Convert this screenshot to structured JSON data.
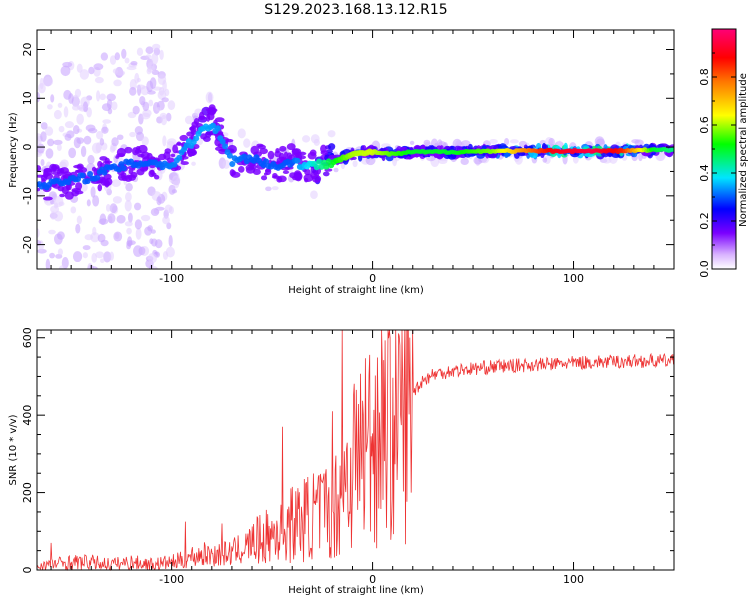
{
  "chart_data": [
    {
      "type": "heatmap",
      "title": "S129.2023.168.13.12.R15",
      "xlabel": "Height of straight line (km)",
      "ylabel": "Frequency (Hz)",
      "xlim": [
        -167,
        150
      ],
      "ylim": [
        -25,
        24
      ],
      "x_ticks": [
        -100,
        0,
        100
      ],
      "x_tick_labels": [
        "-100",
        "0",
        "100"
      ],
      "y_ticks": [
        20,
        10,
        0,
        -10,
        -20
      ],
      "y_tick_labels": [
        "20",
        "10",
        "0",
        "-10",
        "-20"
      ],
      "colorbar": {
        "label": "Normalized spectral amplitude",
        "ticks": [
          0.0,
          0.2,
          0.4,
          0.6,
          0.8
        ],
        "tick_labels": [
          "0.0",
          "0.2",
          "0.4",
          "0.6",
          "0.8"
        ],
        "range": [
          0,
          1
        ]
      },
      "ridge_frequency_hz": [
        [
          -160,
          -7.5
        ],
        [
          -150,
          -7
        ],
        [
          -140,
          -6
        ],
        [
          -130,
          -4.5
        ],
        [
          -120,
          -3.5
        ],
        [
          -110,
          -3
        ],
        [
          -100,
          -4
        ],
        [
          -95,
          -1
        ],
        [
          -90,
          1
        ],
        [
          -85,
          3.5
        ],
        [
          -80,
          5
        ],
        [
          -75,
          2
        ],
        [
          -70,
          -3
        ],
        [
          -60,
          -2
        ],
        [
          -50,
          -4
        ],
        [
          -40,
          -3
        ],
        [
          -30,
          -4
        ],
        [
          -20,
          -3
        ],
        [
          -10,
          -1.5
        ],
        [
          0,
          -1
        ],
        [
          10,
          -1.5
        ],
        [
          20,
          -1
        ],
        [
          40,
          -1
        ],
        [
          60,
          -0.8
        ],
        [
          80,
          -0.8
        ],
        [
          100,
          -0.8
        ],
        [
          120,
          -0.8
        ],
        [
          140,
          -0.6
        ],
        [
          150,
          -0.6
        ]
      ],
      "ridge_amplitude": [
        [
          -160,
          0.3
        ],
        [
          -130,
          0.3
        ],
        [
          -110,
          0.3
        ],
        [
          -85,
          0.35
        ],
        [
          -60,
          0.3
        ],
        [
          -40,
          0.3
        ],
        [
          -25,
          0.45
        ],
        [
          -10,
          0.6
        ],
        [
          0,
          0.62
        ],
        [
          10,
          0.55
        ],
        [
          20,
          0.5
        ],
        [
          40,
          0.5
        ],
        [
          60,
          0.58
        ],
        [
          75,
          0.75
        ],
        [
          90,
          0.9
        ],
        [
          110,
          0.95
        ],
        [
          125,
          0.85
        ],
        [
          140,
          0.5
        ],
        [
          150,
          0.45
        ]
      ]
    },
    {
      "type": "line",
      "xlabel": "Height of straight line (km)",
      "ylabel": "SNR (10 * v/v)",
      "xlim": [
        -167,
        150
      ],
      "ylim": [
        0,
        620
      ],
      "x_ticks": [
        -100,
        0,
        100
      ],
      "x_tick_labels": [
        "-100",
        "0",
        "100"
      ],
      "y_ticks": [
        0,
        200,
        400,
        600
      ],
      "y_tick_labels": [
        "0",
        "200",
        "400",
        "600"
      ],
      "line_color": "#ee3333",
      "series": [
        {
          "x": [
            -167,
            -160,
            -150,
            -140,
            -130,
            -120,
            -110,
            -100,
            -95,
            -90,
            -85,
            -80,
            -75,
            -70,
            -65,
            -60,
            -55,
            -50,
            -45,
            -40,
            -35,
            -30,
            -25,
            -20,
            -17,
            -15,
            -12,
            -10,
            -8,
            -5,
            0,
            5,
            10,
            15,
            20,
            25,
            30,
            40,
            50,
            60,
            70,
            80,
            90,
            100,
            110,
            120,
            130,
            140,
            150
          ],
          "values": [
            10,
            15,
            20,
            20,
            15,
            20,
            15,
            20,
            25,
            35,
            40,
            40,
            40,
            45,
            55,
            70,
            80,
            90,
            110,
            120,
            130,
            140,
            150,
            160,
            180,
            220,
            250,
            280,
            300,
            320,
            350,
            370,
            390,
            420,
            460,
            490,
            505,
            515,
            520,
            525,
            528,
            530,
            532,
            535,
            537,
            538,
            540,
            540,
            540
          ]
        }
      ],
      "spikes": [
        {
          "x": -160,
          "value": 70
        },
        {
          "x": -93,
          "value": 125
        },
        {
          "x": -75,
          "value": 120
        },
        {
          "x": -45,
          "value": 370
        },
        {
          "x": -20,
          "value": 410
        },
        {
          "x": -15,
          "value": 620
        },
        {
          "x": 5,
          "value": 530
        },
        {
          "x": 15,
          "value": 480
        }
      ]
    }
  ]
}
